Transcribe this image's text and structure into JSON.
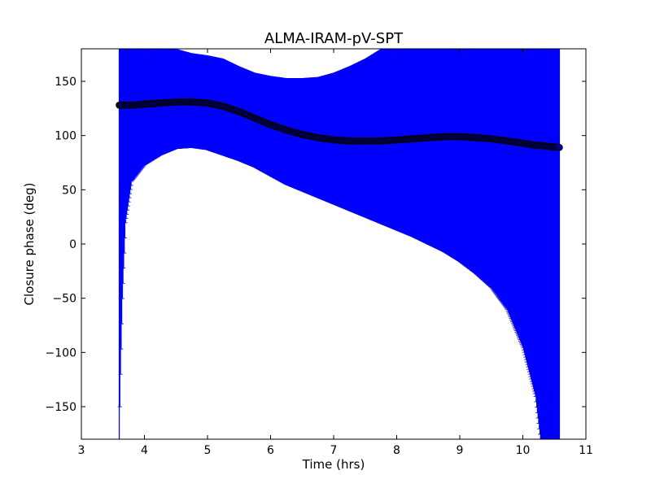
{
  "chart_data": {
    "type": "scatter",
    "title": "ALMA-IRAM-pV-SPT",
    "xlabel": "Time (hrs)",
    "ylabel": "Closure phase (deg)",
    "xlim": [
      3,
      11
    ],
    "ylim": [
      -180,
      180
    ],
    "xticks": [
      3,
      4,
      5,
      6,
      7,
      8,
      9,
      10,
      11
    ],
    "yticks": [
      -150,
      -100,
      -50,
      0,
      50,
      100,
      150
    ],
    "xtick_labels": [
      "3",
      "4",
      "5",
      "6",
      "7",
      "8",
      "9",
      "10",
      "11"
    ],
    "ytick_labels": [
      "−150",
      "−100",
      "−50",
      "0",
      "50",
      "100",
      "150"
    ],
    "grid": false,
    "series": [
      {
        "marker": "circle",
        "marker_color": "#00008b",
        "errorbar_color": "#0000ff",
        "x": [
          3.6,
          3.62,
          3.65,
          3.7,
          3.8,
          4.0,
          4.25,
          4.5,
          4.75,
          5.0,
          5.25,
          5.5,
          5.75,
          6.0,
          6.25,
          6.5,
          6.75,
          7.0,
          7.25,
          7.5,
          7.75,
          8.0,
          8.25,
          8.5,
          8.75,
          9.0,
          9.25,
          9.5,
          9.75,
          10.0,
          10.2,
          10.28,
          10.4,
          10.58
        ],
        "y": [
          128,
          128,
          128,
          128,
          128,
          129,
          130,
          131,
          131,
          130,
          127,
          122,
          116,
          110,
          105,
          101,
          98,
          96,
          95,
          95,
          95,
          96,
          97,
          98,
          99,
          99,
          98,
          97,
          95,
          93,
          91,
          91,
          90,
          89
        ],
        "upper": [
          180,
          180,
          180,
          180,
          180,
          180,
          180,
          180,
          176,
          174,
          171,
          164,
          158,
          155,
          153,
          153,
          154,
          158,
          164,
          171,
          180,
          180,
          180,
          180,
          180,
          180,
          180,
          180,
          180,
          180,
          180,
          180,
          180,
          180
        ],
        "lower": [
          -180,
          -120,
          -50,
          20,
          58,
          73,
          82,
          88,
          89,
          87,
          82,
          77,
          71,
          63,
          55,
          49,
          43,
          37,
          31,
          25,
          19,
          13,
          7,
          0,
          -7,
          -16,
          -27,
          -40,
          -60,
          -95,
          -140,
          -180,
          -180,
          -180
        ]
      }
    ]
  }
}
